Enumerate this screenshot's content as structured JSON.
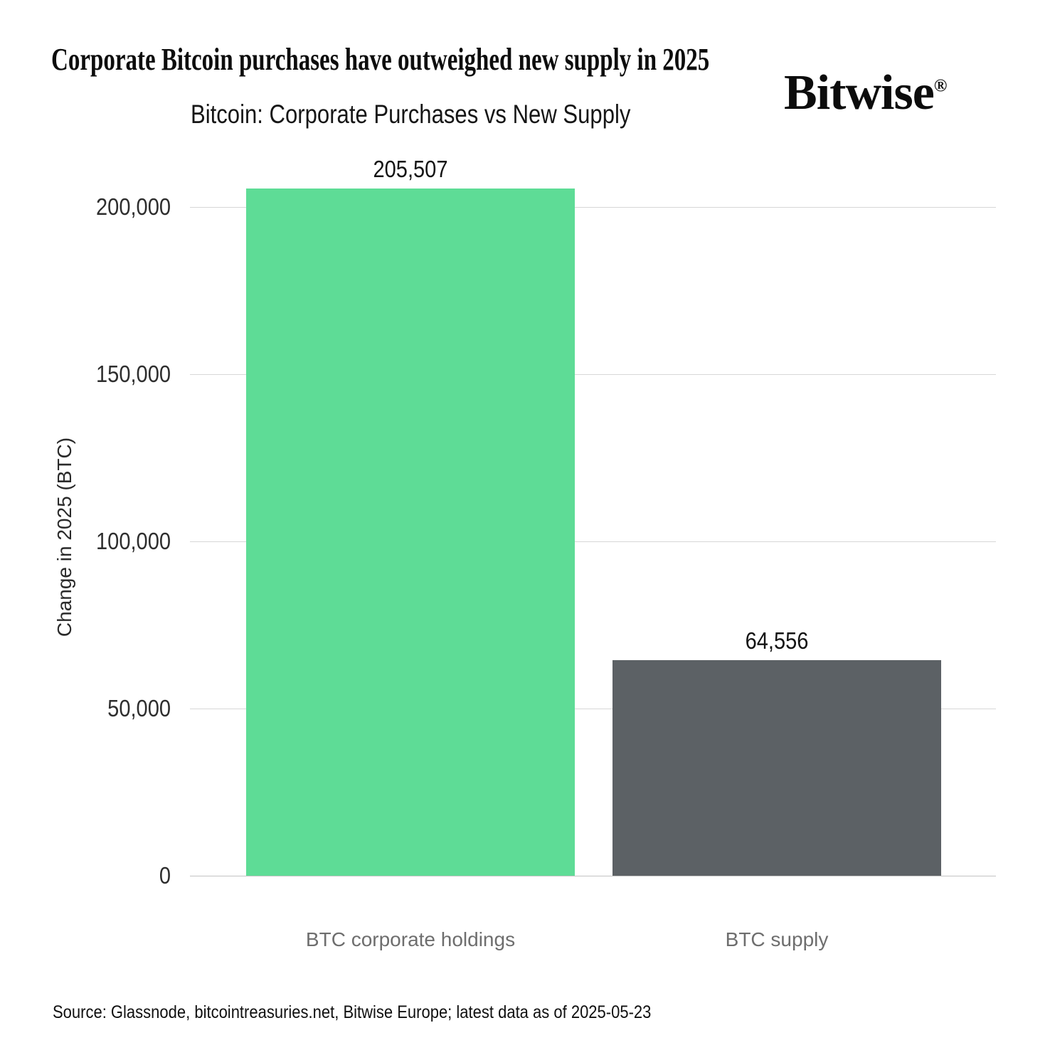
{
  "header": {
    "title": "Corporate Bitcoin purchases have outweighed new supply in 2025",
    "brand": "Bitwise",
    "brand_mark": "®"
  },
  "chart_data": {
    "type": "bar",
    "title": "Bitcoin: Corporate Purchases vs New Supply",
    "categories": [
      "BTC corporate holdings",
      "BTC supply"
    ],
    "values": [
      205507,
      64556
    ],
    "value_labels": [
      "205,507",
      "64,556"
    ],
    "bar_colors": [
      "#5edc96",
      "#5c6165"
    ],
    "xlabel": "",
    "ylabel": "Change in 2025 (BTC)",
    "ylim": [
      0,
      215000
    ],
    "y_ticks": [
      0,
      50000,
      100000,
      150000,
      200000
    ],
    "y_tick_labels": [
      "0",
      "50,000",
      "100,000",
      "150,000",
      "200,000"
    ],
    "grid": true,
    "legend": false,
    "grid_color": "#d7d7d7",
    "category_label_color": "#6e6e6e"
  },
  "footer": {
    "source": "Source: Glassnode, bitcointreasuries.net, Bitwise Europe; latest data as of 2025-05-23"
  }
}
